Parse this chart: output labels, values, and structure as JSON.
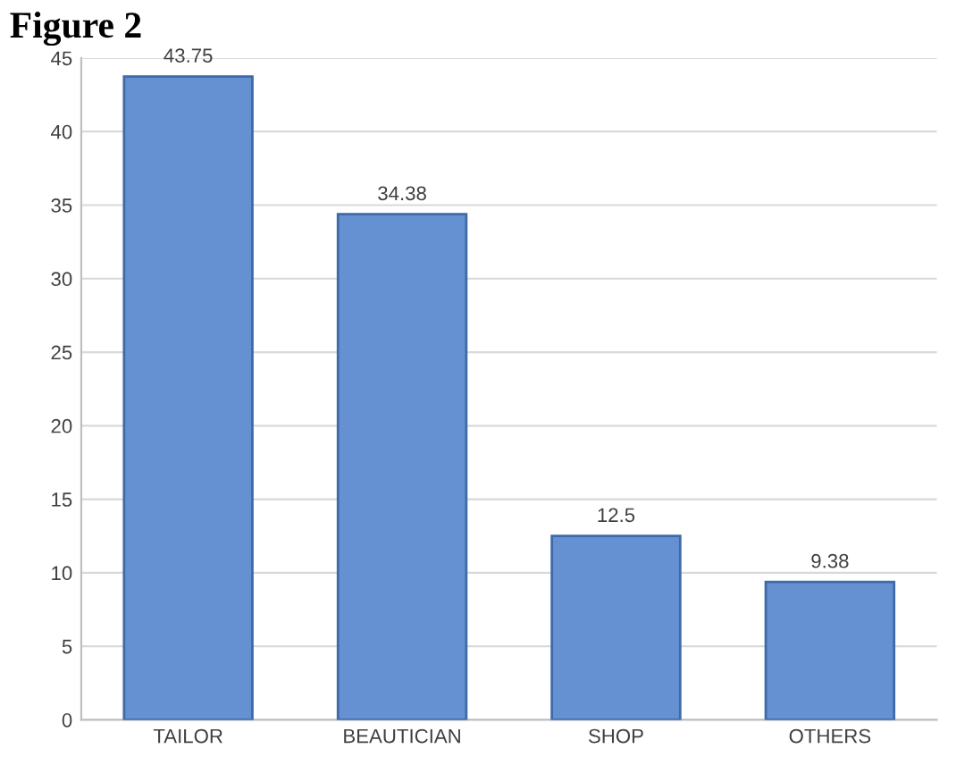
{
  "chart_data": {
    "type": "bar",
    "title": "Figure 2",
    "categories": [
      "TAILOR",
      "BEAUTICIAN",
      "SHOP",
      "OTHERS"
    ],
    "values": [
      43.75,
      34.38,
      12.5,
      9.38
    ],
    "color": "#6590d2",
    "ylim": [
      0,
      45
    ],
    "yticks": [
      0,
      5,
      10,
      15,
      20,
      25,
      30,
      35,
      40,
      45
    ],
    "grid": "y",
    "data_labels": true,
    "legend": false
  }
}
